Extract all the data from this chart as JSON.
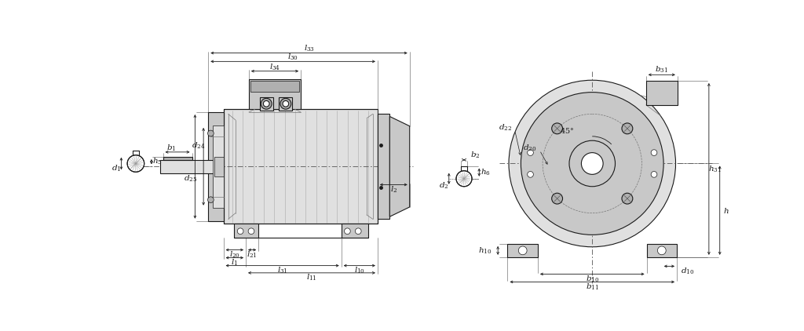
{
  "bg": "#ffffff",
  "lc": "#1a1a1a",
  "gc": "#888888",
  "lw": 0.8,
  "lw2": 0.5,
  "fs": 7.5,
  "gray1": "#e0e0e0",
  "gray2": "#c8c8c8",
  "gray3": "#b0b0b0"
}
